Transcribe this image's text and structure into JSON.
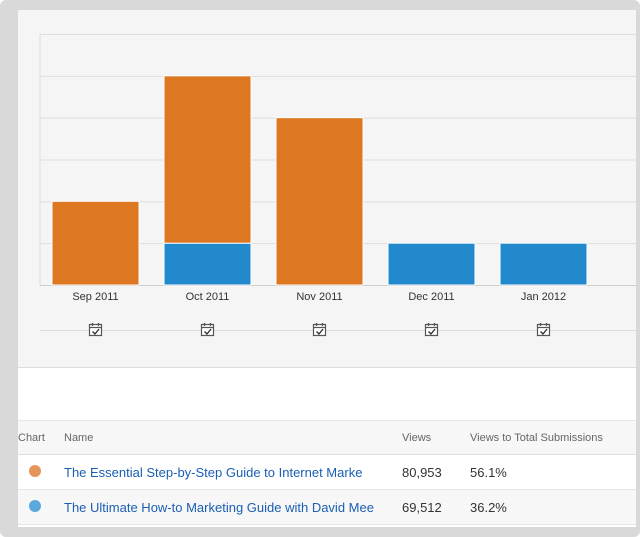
{
  "chart_data": {
    "type": "bar",
    "stacked": true,
    "categories": [
      "Sep 2011",
      "Oct 2011",
      "Nov 2011",
      "Dec 2011",
      "Jan 2012"
    ],
    "series": [
      {
        "name": "The Ultimate How-to Marketing Guide with David Mee",
        "color": "#2389cd",
        "values": [
          0,
          1,
          0,
          1,
          1
        ]
      },
      {
        "name": "The Essential Step-by-Step Guide to Internet Marke",
        "color": "#dd7722",
        "values": [
          2,
          4,
          4,
          0,
          0
        ]
      }
    ],
    "ylim": [
      0,
      6
    ],
    "grid": true,
    "title": "",
    "xlabel": "",
    "ylabel": ""
  },
  "markers": {
    "icon": "calendar-check-icon",
    "count": 5
  },
  "table": {
    "headers": {
      "chart": "Chart",
      "name": "Name",
      "views": "Views",
      "ratio": "Views to Total Submissions"
    },
    "rows": [
      {
        "color": "#e3955a",
        "name": "The Essential Step-by-Step Guide to Internet Marke",
        "views": "80,953",
        "ratio": "56.1%"
      },
      {
        "color": "#5aa9dc",
        "name": "The Ultimate How-to Marketing Guide with David Mee",
        "views": "69,512",
        "ratio": "36.2%"
      }
    ]
  }
}
